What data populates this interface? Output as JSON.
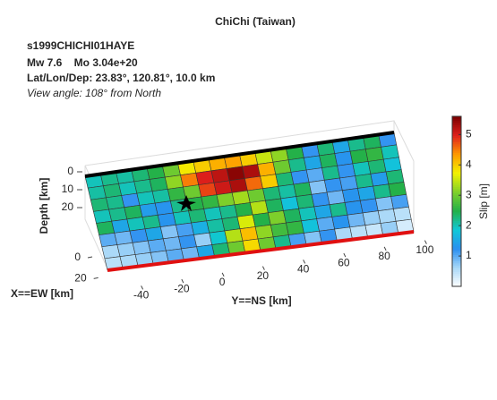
{
  "chart_data": {
    "type": "fault-slip-3d",
    "title": "ChiChi (Taiwan)",
    "event_id": "s1999CHICHI01HAYE",
    "magnitude_line": "Mw 7.6    Mo 3.04e+20",
    "location_line": "Lat/Lon/Dep: 23.83°, 120.81°, 10.0 km",
    "view_line": "View angle: 108° from North",
    "xlabel": "X==EW [km]",
    "ylabel": "Y==NS [km]",
    "zlabel": "Depth [km]",
    "colorbar_label": "Slip [m]",
    "xlim": [
      0,
      30
    ],
    "xticks": [
      0,
      20
    ],
    "ylim": [
      -50,
      110
    ],
    "yticks": [
      -40,
      -20,
      0,
      20,
      40,
      60,
      80,
      100
    ],
    "zlim": [
      0,
      30
    ],
    "zticks": [
      0,
      10,
      20
    ],
    "clim": [
      0,
      5.6
    ],
    "cticks": [
      1,
      2,
      3,
      4,
      5
    ],
    "colormap": [
      "#ffffff",
      "#a8d8f8",
      "#2a8ff0",
      "#10c8d8",
      "#22b04a",
      "#7fd02a",
      "#f2f200",
      "#ff9a00",
      "#e0201c",
      "#7a0000"
    ],
    "slip": [
      [
        2,
        2.2,
        2.1,
        2.3,
        2.5,
        3,
        3.8,
        4,
        4.2,
        4.3,
        4,
        3.5,
        3.2,
        2.5,
        1.2,
        2.3,
        1.5,
        2.2,
        2.4,
        1.2
      ],
      [
        2.1,
        2.3,
        2,
        2.2,
        2.4,
        3.2,
        4.5,
        5,
        5.2,
        5.5,
        5.3,
        4.2,
        3,
        2.2,
        1.5,
        2.4,
        1.3,
        2.5,
        2.6,
        2
      ],
      [
        2.3,
        2.2,
        1.2,
        2,
        2.1,
        2.6,
        3,
        4.8,
        5.1,
        5.3,
        4.6,
        4,
        2.3,
        1.2,
        1,
        2.2,
        1.2,
        2,
        2.3,
        1.8
      ],
      [
        2,
        2.2,
        2.4,
        1.4,
        1.3,
        2.2,
        2.5,
        2.6,
        3.1,
        3.3,
        3,
        2.3,
        2.1,
        2.4,
        0.8,
        1.2,
        1.1,
        2.2,
        1.4,
        2.3
      ],
      [
        2.4,
        1.5,
        2,
        2.2,
        1.3,
        2,
        2.3,
        2,
        2.2,
        2.5,
        3.4,
        2.4,
        1.8,
        2.3,
        1.2,
        0.9,
        1.3,
        1.5,
        2.2,
        2.5
      ],
      [
        1,
        0.9,
        1.2,
        1.5,
        0.8,
        1.1,
        1.6,
        2.1,
        2.3,
        3.6,
        2.5,
        3.1,
        2.4,
        2,
        1.5,
        2.2,
        1.3,
        1.2,
        0.8,
        1.1
      ],
      [
        0.6,
        0.7,
        0.8,
        1,
        0.9,
        1.2,
        0.7,
        1.9,
        3.4,
        4.1,
        3.2,
        2.7,
        2.6,
        1.8,
        1,
        1.3,
        0.9,
        0.7,
        0.6,
        0.5
      ],
      [
        0.5,
        0.6,
        0.7,
        0.8,
        1,
        0.9,
        1.5,
        2.3,
        3,
        3.9,
        3,
        2.2,
        1.1,
        0.8,
        1.2,
        0.6,
        0.5,
        0.4,
        0.7,
        0.3
      ]
    ]
  }
}
